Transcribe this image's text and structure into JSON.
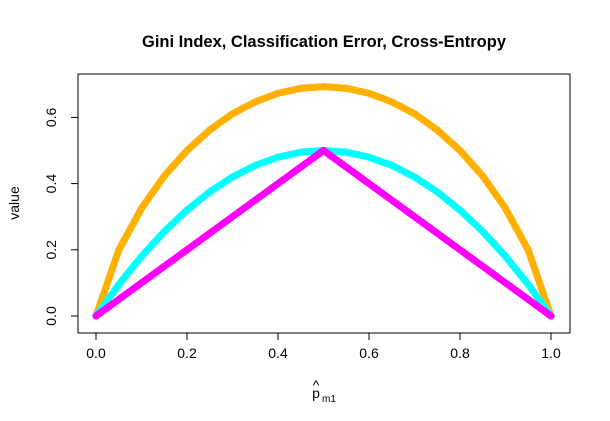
{
  "chart_data": {
    "type": "line",
    "title": "Gini Index, Classification Error, Cross-Entropy",
    "xlabel": {
      "base": "p",
      "accent": "^",
      "subscript": "m1"
    },
    "ylabel": "value",
    "xlim": [
      0,
      1
    ],
    "ylim": [
      0,
      0.7
    ],
    "x_ticks": [
      "0.0",
      "0.2",
      "0.4",
      "0.6",
      "0.8",
      "1.0"
    ],
    "y_ticks": [
      "0.0",
      "0.2",
      "0.4",
      "0.6"
    ],
    "grid": false,
    "legend": "none",
    "series": [
      {
        "color": "#FFB000",
        "formula": "cross-entropy",
        "x": [
          0.0,
          0.05,
          0.1,
          0.15,
          0.2,
          0.25,
          0.3,
          0.35,
          0.4,
          0.45,
          0.5,
          0.55,
          0.6,
          0.65,
          0.7,
          0.75,
          0.8,
          0.85,
          0.9,
          0.95,
          1.0
        ],
        "values": [
          0.0,
          0.199,
          0.325,
          0.423,
          0.5,
          0.562,
          0.611,
          0.647,
          0.673,
          0.688,
          0.693,
          0.688,
          0.673,
          0.647,
          0.611,
          0.562,
          0.5,
          0.423,
          0.325,
          0.199,
          0.0
        ]
      },
      {
        "color": "#00FFFF",
        "formula": "gini",
        "x": [
          0.0,
          0.05,
          0.1,
          0.15,
          0.2,
          0.25,
          0.3,
          0.35,
          0.4,
          0.45,
          0.5,
          0.55,
          0.6,
          0.65,
          0.7,
          0.75,
          0.8,
          0.85,
          0.9,
          0.95,
          1.0
        ],
        "values": [
          0.0,
          0.095,
          0.18,
          0.255,
          0.32,
          0.375,
          0.42,
          0.455,
          0.48,
          0.495,
          0.5,
          0.495,
          0.48,
          0.455,
          0.42,
          0.375,
          0.32,
          0.255,
          0.18,
          0.095,
          0.0
        ]
      },
      {
        "color": "#FF00FF",
        "formula": "classification-error",
        "x": [
          0.0,
          0.5,
          1.0
        ],
        "values": [
          0.0,
          0.5,
          0.0
        ]
      }
    ]
  }
}
